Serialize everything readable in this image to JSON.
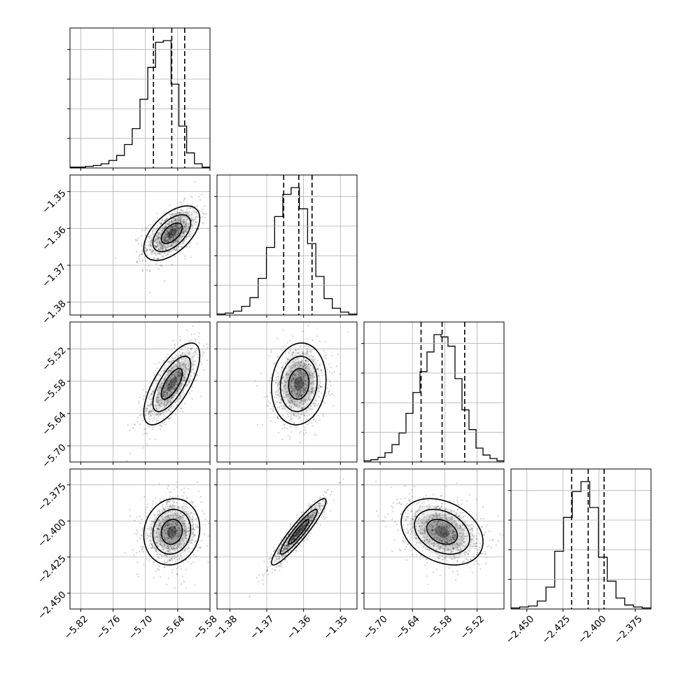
{
  "chart_data": {
    "type": "corner",
    "parameters": [
      {
        "ticks": [
          -5.82,
          -5.76,
          -5.7,
          -5.64,
          -5.58
        ],
        "tick_labels": [
          "−5.82",
          "−5.76",
          "−5.70",
          "−5.64",
          "−5.58"
        ],
        "range": [
          -5.84,
          -5.58
        ],
        "median": -5.651,
        "q16": -5.685,
        "q84": -5.627,
        "sigma": 0.026
      },
      {
        "ticks": [
          -1.38,
          -1.37,
          -1.36,
          -1.35
        ],
        "tick_labels": [
          "−1.38",
          "−1.37",
          "−1.36",
          "−1.35"
        ],
        "range": [
          -1.3835,
          -1.3455
        ],
        "median": -1.3613,
        "q16": -1.3654,
        "q84": -1.3577,
        "sigma": 0.0037
      },
      {
        "ticks": [
          -5.7,
          -5.64,
          -5.58,
          -5.52
        ],
        "tick_labels": [
          "−5.70",
          "−5.64",
          "−5.58",
          "−5.52"
        ],
        "range": [
          -5.73,
          -5.47
        ],
        "median": -5.585,
        "q16": -5.624,
        "q84": -5.543,
        "sigma": 0.038
      },
      {
        "ticks": [
          -2.45,
          -2.425,
          -2.4,
          -2.375
        ],
        "tick_labels": [
          "−2.450",
          "−2.425",
          "−2.400",
          "−2.375"
        ],
        "range": [
          -2.461,
          -2.364
        ],
        "median": -2.4075,
        "q16": -2.419,
        "q84": -2.3965,
        "sigma": 0.0115
      }
    ],
    "correlations": [
      [
        0,
        1,
        0.55
      ],
      [
        0,
        2,
        0.7
      ],
      [
        0,
        3,
        0.1
      ],
      [
        1,
        2,
        0.1
      ],
      [
        1,
        3,
        0.93
      ],
      [
        2,
        3,
        -0.3
      ]
    ],
    "hist_counts": [
      [
        1,
        1,
        2,
        3,
        5,
        9,
        15,
        28,
        47,
        82,
        120,
        150,
        152,
        100,
        50,
        18,
        5,
        1
      ],
      [
        1,
        2,
        4,
        9,
        18,
        38,
        70,
        102,
        125,
        132,
        110,
        74,
        40,
        17,
        7,
        3,
        1
      ],
      [
        1,
        2,
        4,
        8,
        15,
        25,
        42,
        60,
        78,
        95,
        110,
        108,
        100,
        72,
        45,
        28,
        12,
        6,
        3,
        1
      ],
      [
        1,
        2,
        3,
        8,
        22,
        58,
        92,
        118,
        128,
        102,
        52,
        28,
        11,
        4,
        2,
        1
      ]
    ],
    "grid": true,
    "quantile_lines": [
      "16%",
      "50%",
      "84%"
    ]
  }
}
